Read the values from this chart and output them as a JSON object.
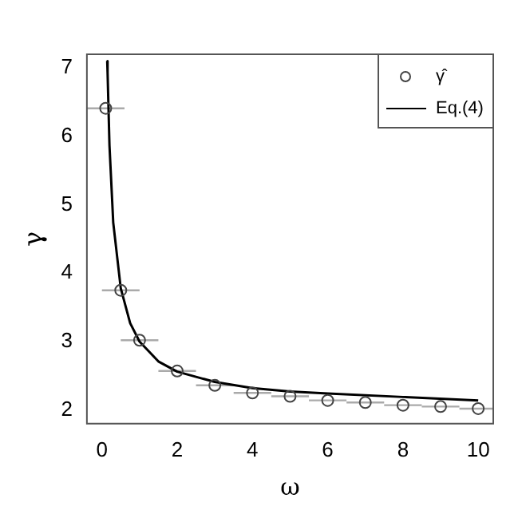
{
  "chart_data": {
    "type": "scatter",
    "xlabel": "ω",
    "ylabel": "γ",
    "xlim": [
      -0.4,
      10.4
    ],
    "ylim": [
      1.8,
      7.2
    ],
    "xticks": [
      0,
      2,
      4,
      6,
      8,
      10
    ],
    "yticks": [
      2,
      3,
      4,
      5,
      6,
      7
    ],
    "grid": false,
    "legend": "top right",
    "series": [
      {
        "name": "γ̂",
        "marker": "circle",
        "color": "#444444",
        "x": [
          0.1,
          0.5,
          1,
          2,
          3,
          4,
          5,
          6,
          7,
          8,
          9,
          10
        ],
        "values": [
          6.41,
          3.75,
          3.02,
          2.57,
          2.36,
          2.25,
          2.2,
          2.14,
          2.11,
          2.07,
          2.05,
          2.02
        ],
        "xerrors": [
          0.5,
          0.5,
          0.5,
          0.5,
          0.5,
          0.5,
          0.5,
          0.5,
          0.5,
          0.5,
          0.5,
          0.5
        ]
      },
      {
        "name": "Eq.(4)",
        "type": "line",
        "marker": "none",
        "line_style": "solid",
        "color": "#000000",
        "x": [
          0.14,
          0.15,
          0.2,
          0.3,
          0.5,
          0.75,
          1,
          1.5,
          2,
          3,
          4,
          5,
          6,
          8,
          10
        ],
        "values": [
          7.1,
          6.93,
          5.87,
          4.74,
          3.78,
          3.27,
          3.0,
          2.71,
          2.56,
          2.41,
          2.32,
          2.27,
          2.24,
          2.19,
          2.14
        ]
      }
    ]
  }
}
